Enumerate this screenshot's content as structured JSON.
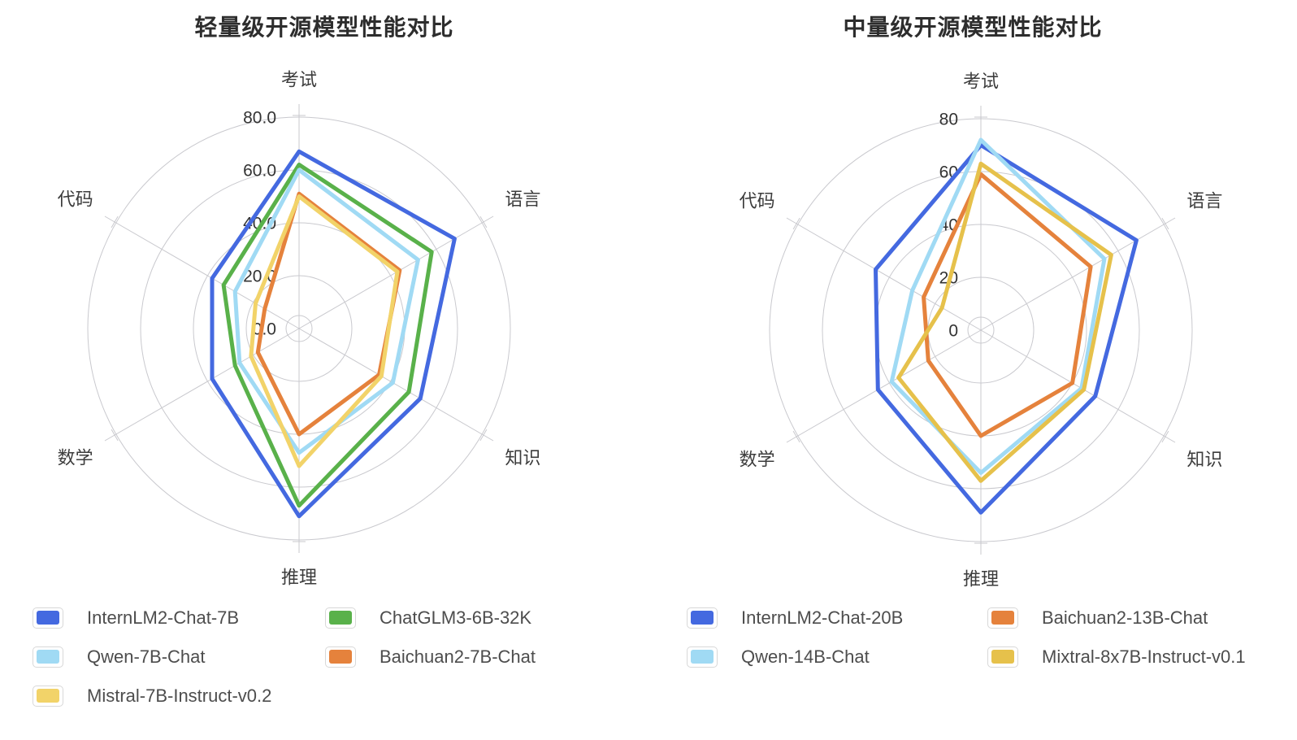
{
  "chart_data": [
    {
      "type": "radar",
      "title": "轻量级开源模型性能对比",
      "categories": [
        "考试",
        "语言",
        "知识",
        "推理",
        "数学",
        "代码"
      ],
      "rlim": [
        0,
        80
      ],
      "tick_values": [
        0,
        20,
        40,
        60,
        80
      ],
      "tick_labels": [
        "0.0",
        "20.0",
        "40.0",
        "60.0",
        "80.0"
      ],
      "grid": "circular",
      "legend_position": "bottom",
      "series": [
        {
          "name": "InternLM2-Chat-7B",
          "color": "#4469E0",
          "values": [
            67,
            68,
            53,
            71,
            38,
            38
          ]
        },
        {
          "name": "ChatGLM3-6B-32K",
          "color": "#59B14A",
          "values": [
            62,
            58,
            48,
            67,
            28,
            33
          ]
        },
        {
          "name": "Qwen-7B-Chat",
          "color": "#A0DAF4",
          "values": [
            60,
            52,
            41,
            47,
            26,
            28
          ]
        },
        {
          "name": "Baichuan2-7B-Chat",
          "color": "#E5823C",
          "values": [
            51,
            44,
            35,
            40,
            18,
            15
          ]
        },
        {
          "name": "Mistral-7B-Instruct-v0.2",
          "color": "#F2D369",
          "values": [
            50,
            43,
            36,
            52,
            21,
            19
          ]
        }
      ]
    },
    {
      "type": "radar",
      "title": "中量级开源模型性能对比",
      "categories": [
        "考试",
        "语言",
        "知识",
        "推理",
        "数学",
        "代码"
      ],
      "rlim": [
        0,
        80
      ],
      "tick_values": [
        0,
        20,
        40,
        60,
        80
      ],
      "tick_labels": [
        "0",
        "20",
        "40",
        "60",
        "80"
      ],
      "grid": "circular",
      "legend_position": "bottom",
      "series": [
        {
          "name": "InternLM2-Chat-20B",
          "color": "#4469E0",
          "values": [
            70,
            68,
            50,
            69,
            45,
            46
          ]
        },
        {
          "name": "Baichuan2-13B-Chat",
          "color": "#E5823C",
          "values": [
            59,
            48,
            40,
            40,
            23,
            25
          ]
        },
        {
          "name": "Qwen-14B-Chat",
          "color": "#A0DAF4",
          "values": [
            72,
            54,
            44,
            54,
            39,
            30
          ]
        },
        {
          "name": "Mixtral-8x7B-Instruct-v0.1",
          "color": "#E6C14B",
          "values": [
            63,
            57,
            45,
            57,
            36,
            17
          ]
        }
      ]
    }
  ]
}
